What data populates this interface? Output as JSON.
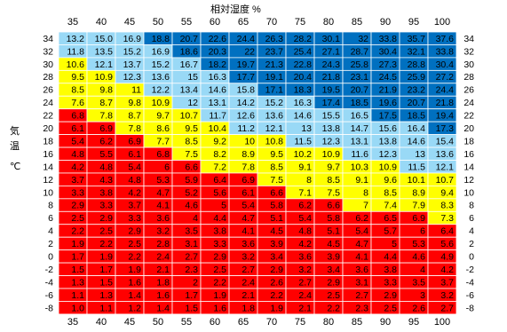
{
  "chart_data": {
    "type": "heatmap",
    "xlabel": "相対湿度 %",
    "ylabel_chars": [
      "気",
      "温"
    ],
    "ylabel_unit": "℃",
    "humidity": [
      35,
      40,
      45,
      50,
      55,
      60,
      65,
      70,
      75,
      80,
      85,
      90,
      95,
      100
    ],
    "temperature": [
      34,
      32,
      30,
      28,
      26,
      24,
      22,
      20,
      18,
      16,
      14,
      12,
      10,
      8,
      6,
      4,
      2,
      0,
      -2,
      -4,
      -6,
      -8
    ],
    "values": [
      [
        "13.2",
        "15.0",
        "16.9",
        "18.8",
        "20.7",
        "22.6",
        "24.4",
        "26.3",
        "28.2",
        "30.1",
        "32",
        "33.8",
        "35.7",
        "37.6"
      ],
      [
        "11.8",
        "13.5",
        "15.2",
        "16.9",
        "18.6",
        "20.3",
        "22",
        "23.7",
        "25.4",
        "27.1",
        "28.7",
        "30.4",
        "32.1",
        "33.8"
      ],
      [
        "10.6",
        "12.1",
        "13.7",
        "15.2",
        "16.7",
        "18.2",
        "19.7",
        "21.3",
        "22.8",
        "24.3",
        "25.8",
        "27.3",
        "28.8",
        "30.4"
      ],
      [
        "9.5",
        "10.9",
        "12.3",
        "13.6",
        "15",
        "16.3",
        "17.7",
        "19.1",
        "20.4",
        "21.8",
        "23.1",
        "24.5",
        "25.9",
        "27.2"
      ],
      [
        "8.5",
        "9.8",
        "11",
        "12.2",
        "13.4",
        "14.6",
        "15.8",
        "17.1",
        "18.3",
        "19.5",
        "20.7",
        "21.9",
        "23.2",
        "24.4"
      ],
      [
        "7.6",
        "8.7",
        "9.8",
        "10.9",
        "12",
        "13.1",
        "14.2",
        "15.2",
        "16.3",
        "17.4",
        "18.5",
        "19.6",
        "20.7",
        "21.8"
      ],
      [
        "6.8",
        "7.8",
        "8.7",
        "9.7",
        "10.7",
        "11.7",
        "12.6",
        "13.6",
        "14.6",
        "15.5",
        "16.5",
        "17.5",
        "18.5",
        "19.4"
      ],
      [
        "6.1",
        "6.9",
        "7.8",
        "8.6",
        "9.5",
        "10.4",
        "11.2",
        "12.1",
        "13",
        "13.8",
        "14.7",
        "15.6",
        "16.4",
        "17.3"
      ],
      [
        "5.4",
        "6.2",
        "6.9",
        "7.7",
        "8.5",
        "9.2",
        "10",
        "10.8",
        "11.5",
        "12.3",
        "13.1",
        "13.8",
        "14.6",
        "15.4"
      ],
      [
        "4.8",
        "5.5",
        "6.1",
        "6.8",
        "7.5",
        "8.2",
        "8.9",
        "9.5",
        "10.2",
        "10.9",
        "11.6",
        "12.3",
        "13",
        "13.6"
      ],
      [
        "4.2",
        "4.8",
        "5.4",
        "6",
        "6.6",
        "7.2",
        "7.8",
        "8.5",
        "9.1",
        "9.7",
        "10.3",
        "10.9",
        "11.5",
        "12.1"
      ],
      [
        "3.7",
        "4.3",
        "4.8",
        "5.3",
        "5.9",
        "6.4",
        "6.9",
        "7.5",
        "8",
        "8.5",
        "9.1",
        "9.6",
        "10.1",
        "10.7"
      ],
      [
        "3.3",
        "3.8",
        "4.2",
        "4.7",
        "5.2",
        "5.6",
        "6.1",
        "6.6",
        "7.1",
        "7.5",
        "8",
        "8.5",
        "8.9",
        "9.4"
      ],
      [
        "2.9",
        "3.3",
        "3.7",
        "4.1",
        "4.6",
        "5",
        "5.4",
        "5.8",
        "6.2",
        "6.6",
        "7",
        "7.4",
        "7.9",
        "8.3"
      ],
      [
        "2.5",
        "2.9",
        "3.3",
        "3.6",
        "4",
        "4.4",
        "4.7",
        "5.1",
        "5.4",
        "5.8",
        "6.2",
        "6.5",
        "6.9",
        "7.3"
      ],
      [
        "2.2",
        "2.5",
        "2.9",
        "3.2",
        "3.5",
        "3.8",
        "4.1",
        "4.5",
        "4.8",
        "5.1",
        "5.4",
        "5.7",
        "6",
        "6.4"
      ],
      [
        "1.9",
        "2.2",
        "2.5",
        "2.8",
        "3.1",
        "3.3",
        "3.6",
        "3.9",
        "4.2",
        "4.5",
        "4.7",
        "5",
        "5.3",
        "5.6"
      ],
      [
        "1.7",
        "1.9",
        "2.2",
        "2.4",
        "2.7",
        "2.9",
        "3.2",
        "3.4",
        "3.6",
        "3.9",
        "4.1",
        "4.4",
        "4.6",
        "4.9"
      ],
      [
        "1.5",
        "1.7",
        "1.9",
        "2.1",
        "2.3",
        "2.5",
        "2.7",
        "2.9",
        "3.2",
        "3.4",
        "3.6",
        "3.8",
        "4",
        "4.2"
      ],
      [
        "1.3",
        "1.5",
        "1.6",
        "1.8",
        "2",
        "2.2",
        "2.4",
        "2.6",
        "2.7",
        "2.9",
        "3.1",
        "3.3",
        "3.5",
        "3.7"
      ],
      [
        "1.1",
        "1.3",
        "1.4",
        "1.6",
        "1.7",
        "1.9",
        "2.1",
        "2.2",
        "2.4",
        "2.5",
        "2.7",
        "2.9",
        "3",
        "3.2"
      ],
      [
        "1.0",
        "1.1",
        "1.2",
        "1.4",
        "1.5",
        "1.6",
        "1.8",
        "1.9",
        "2.1",
        "2.2",
        "2.3",
        "2.5",
        "2.6",
        "2.7"
      ]
    ],
    "cell_class": [
      [
        "L",
        "L",
        "L",
        "D",
        "D",
        "D",
        "D",
        "D",
        "D",
        "D",
        "D",
        "D",
        "D",
        "D"
      ],
      [
        "L",
        "L",
        "L",
        "L",
        "D",
        "D",
        "D",
        "D",
        "D",
        "D",
        "D",
        "D",
        "D",
        "D"
      ],
      [
        "Y",
        "L",
        "L",
        "L",
        "L",
        "D",
        "D",
        "D",
        "D",
        "D",
        "D",
        "D",
        "D",
        "D"
      ],
      [
        "Y",
        "Y",
        "L",
        "L",
        "L",
        "L",
        "D",
        "D",
        "D",
        "D",
        "D",
        "D",
        "D",
        "D"
      ],
      [
        "Y",
        "Y",
        "Y",
        "L",
        "L",
        "L",
        "L",
        "D",
        "D",
        "D",
        "D",
        "D",
        "D",
        "D"
      ],
      [
        "Y",
        "Y",
        "Y",
        "Y",
        "L",
        "L",
        "L",
        "L",
        "L",
        "D",
        "D",
        "D",
        "D",
        "D"
      ],
      [
        "R",
        "Y",
        "Y",
        "Y",
        "Y",
        "L",
        "L",
        "L",
        "L",
        "L",
        "L",
        "D",
        "D",
        "D"
      ],
      [
        "R",
        "R",
        "Y",
        "Y",
        "Y",
        "Y",
        "L",
        "L",
        "L",
        "L",
        "L",
        "L",
        "L",
        "D"
      ],
      [
        "R",
        "R",
        "R",
        "Y",
        "Y",
        "Y",
        "Y",
        "Y",
        "L",
        "L",
        "L",
        "L",
        "L",
        "L"
      ],
      [
        "R",
        "R",
        "R",
        "R",
        "Y",
        "Y",
        "Y",
        "Y",
        "Y",
        "Y",
        "L",
        "L",
        "L",
        "L"
      ],
      [
        "R",
        "R",
        "R",
        "R",
        "R",
        "Y",
        "Y",
        "Y",
        "Y",
        "Y",
        "Y",
        "Y",
        "L",
        "L"
      ],
      [
        "R",
        "R",
        "R",
        "R",
        "R",
        "R",
        "R",
        "Y",
        "Y",
        "Y",
        "Y",
        "Y",
        "Y",
        "Y"
      ],
      [
        "R",
        "R",
        "R",
        "R",
        "R",
        "R",
        "R",
        "R",
        "Y",
        "Y",
        "Y",
        "Y",
        "Y",
        "Y"
      ],
      [
        "R",
        "R",
        "R",
        "R",
        "R",
        "R",
        "R",
        "R",
        "R",
        "R",
        "Y",
        "Y",
        "Y",
        "Y"
      ],
      [
        "R",
        "R",
        "R",
        "R",
        "R",
        "R",
        "R",
        "R",
        "R",
        "R",
        "R",
        "R",
        "R",
        "Y"
      ],
      [
        "R",
        "R",
        "R",
        "R",
        "R",
        "R",
        "R",
        "R",
        "R",
        "R",
        "R",
        "R",
        "R",
        "R"
      ],
      [
        "R",
        "R",
        "R",
        "R",
        "R",
        "R",
        "R",
        "R",
        "R",
        "R",
        "R",
        "R",
        "R",
        "R"
      ],
      [
        "R",
        "R",
        "R",
        "R",
        "R",
        "R",
        "R",
        "R",
        "R",
        "R",
        "R",
        "R",
        "R",
        "R"
      ],
      [
        "R",
        "R",
        "R",
        "R",
        "R",
        "R",
        "R",
        "R",
        "R",
        "R",
        "R",
        "R",
        "R",
        "R"
      ],
      [
        "R",
        "R",
        "R",
        "R",
        "R",
        "R",
        "R",
        "R",
        "R",
        "R",
        "R",
        "R",
        "R",
        "R"
      ],
      [
        "R",
        "R",
        "R",
        "R",
        "R",
        "R",
        "R",
        "R",
        "R",
        "R",
        "R",
        "R",
        "R",
        "R"
      ],
      [
        "R",
        "R",
        "R",
        "R",
        "R",
        "R",
        "R",
        "R",
        "R",
        "R",
        "R",
        "R",
        "R",
        "R"
      ]
    ],
    "colors": {
      "R": "#ff0000",
      "Y": "#ffff00",
      "L": "#99d9f6",
      "D": "#0070c0",
      "grid": "#ffffff",
      "text": "#000000"
    },
    "grid": true
  }
}
